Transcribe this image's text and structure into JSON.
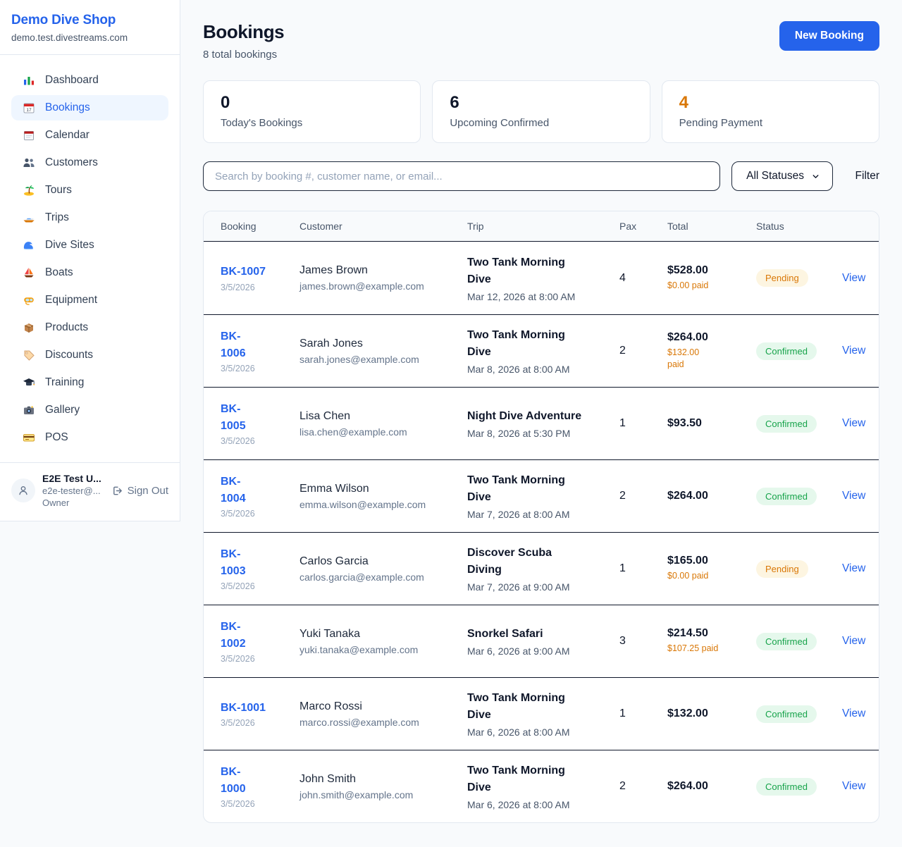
{
  "sidebar": {
    "shop_name": "Demo Dive Shop",
    "domain": "demo.test.divestreams.com",
    "items": [
      {
        "label": "Dashboard",
        "icon": "bar-chart",
        "active": false
      },
      {
        "label": "Bookings",
        "icon": "calendar-bookings",
        "active": true
      },
      {
        "label": "Calendar",
        "icon": "calendar",
        "active": false
      },
      {
        "label": "Customers",
        "icon": "people",
        "active": false
      },
      {
        "label": "Tours",
        "icon": "island",
        "active": false
      },
      {
        "label": "Trips",
        "icon": "speedboat",
        "active": false
      },
      {
        "label": "Dive Sites",
        "icon": "wave",
        "active": false
      },
      {
        "label": "Boats",
        "icon": "sailboat",
        "active": false
      },
      {
        "label": "Equipment",
        "icon": "dive-mask",
        "active": false
      },
      {
        "label": "Products",
        "icon": "package",
        "active": false
      },
      {
        "label": "Discounts",
        "icon": "tag",
        "active": false
      },
      {
        "label": "Training",
        "icon": "grad-cap",
        "active": false
      },
      {
        "label": "Gallery",
        "icon": "camera",
        "active": false
      },
      {
        "label": "POS",
        "icon": "credit-card",
        "active": false
      }
    ],
    "user": {
      "name": "E2E Test U...",
      "email": "e2e-tester@...",
      "role": "Owner",
      "sign_out_label": "Sign Out"
    }
  },
  "header": {
    "title": "Bookings",
    "subtitle": "8 total bookings",
    "new_booking_label": "New Booking"
  },
  "stats": [
    {
      "value": "0",
      "label": "Today's Bookings",
      "color": "#0f172a"
    },
    {
      "value": "6",
      "label": "Upcoming Confirmed",
      "color": "#0f172a"
    },
    {
      "value": "4",
      "label": "Pending Payment",
      "color": "#d97706"
    }
  ],
  "filters": {
    "search_placeholder": "Search by booking #, customer name, or email...",
    "status_selected": "All Statuses",
    "filter_label": "Filter"
  },
  "table": {
    "headers": [
      "Booking",
      "Customer",
      "Trip",
      "Pax",
      "Total",
      "Status"
    ],
    "view_label": "View",
    "rows": [
      {
        "id": "BK-1007",
        "date": "3/5/2026",
        "customer": "James Brown",
        "email": "james.brown@example.com",
        "trip": "Two Tank Morning Dive",
        "trip_date": "Mar 12, 2026 at 8:00 AM",
        "pax": "4",
        "total": "$528.00",
        "paid": "$0.00 paid",
        "status": "Pending"
      },
      {
        "id": "BK-\n1006",
        "date": "3/5/2026",
        "customer": "Sarah Jones",
        "email": "sarah.jones@example.com",
        "trip": "Two Tank Morning Dive",
        "trip_date": "Mar 8, 2026 at 8:00 AM",
        "pax": "2",
        "total": "$264.00",
        "paid": "$132.00\npaid",
        "status": "Confirmed"
      },
      {
        "id": "BK-\n1005",
        "date": "3/5/2026",
        "customer": "Lisa Chen",
        "email": "lisa.chen@example.com",
        "trip": "Night Dive Adventure",
        "trip_date": "Mar 8, 2026 at 5:30 PM",
        "pax": "1",
        "total": "$93.50",
        "paid": null,
        "status": "Confirmed"
      },
      {
        "id": "BK-\n1004",
        "date": "3/5/2026",
        "customer": "Emma Wilson",
        "email": "emma.wilson@example.com",
        "trip": "Two Tank Morning Dive",
        "trip_date": "Mar 7, 2026 at 8:00 AM",
        "pax": "2",
        "total": "$264.00",
        "paid": null,
        "status": "Confirmed"
      },
      {
        "id": "BK-\n1003",
        "date": "3/5/2026",
        "customer": "Carlos Garcia",
        "email": "carlos.garcia@example.com",
        "trip": "Discover Scuba Diving",
        "trip_date": "Mar 7, 2026 at 9:00 AM",
        "pax": "1",
        "total": "$165.00",
        "paid": "$0.00 paid",
        "status": "Pending"
      },
      {
        "id": "BK-\n1002",
        "date": "3/5/2026",
        "customer": "Yuki Tanaka",
        "email": "yuki.tanaka@example.com",
        "trip": "Snorkel Safari",
        "trip_date": "Mar 6, 2026 at 9:00 AM",
        "pax": "3",
        "total": "$214.50",
        "paid": "$107.25 paid",
        "status": "Confirmed"
      },
      {
        "id": "BK-1001",
        "date": "3/5/2026",
        "customer": "Marco Rossi",
        "email": "marco.rossi@example.com",
        "trip": "Two Tank Morning Dive",
        "trip_date": "Mar 6, 2026 at 8:00 AM",
        "pax": "1",
        "total": "$132.00",
        "paid": null,
        "status": "Confirmed"
      },
      {
        "id": "BK-\n1000",
        "date": "3/5/2026",
        "customer": "John Smith",
        "email": "john.smith@example.com",
        "trip": "Two Tank Morning Dive",
        "trip_date": "Mar 6, 2026 at 8:00 AM",
        "pax": "2",
        "total": "$264.00",
        "paid": null,
        "status": "Confirmed"
      }
    ]
  },
  "colors": {
    "accent": "#2563eb",
    "pending_text": "#d97706",
    "pending_bg": "#fdf5e1",
    "confirmed_text": "#16a34a",
    "confirmed_bg": "#e5f8ec"
  }
}
